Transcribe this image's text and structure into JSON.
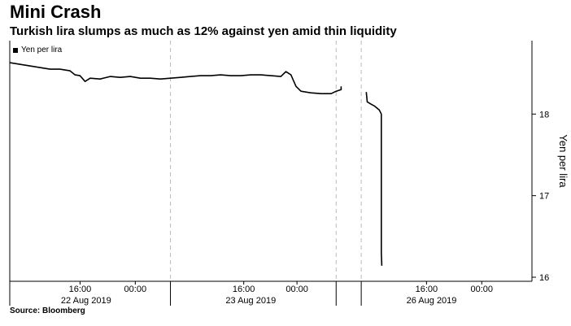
{
  "title": "Mini Crash",
  "subtitle": "Turkish lira slumps as much as 12% against yen amid thin liquidity",
  "source": "Source: Bloomberg",
  "chart_data": {
    "type": "line",
    "series": [
      {
        "name": "Yen per lira",
        "color": "#000000",
        "segments": [
          [
            [
              0,
              18.63
            ],
            [
              1,
              18.61
            ],
            [
              2,
              18.59
            ],
            [
              3,
              18.57
            ],
            [
              4,
              18.55
            ],
            [
              5,
              18.55
            ],
            [
              6,
              18.53
            ],
            [
              6.5,
              18.48
            ],
            [
              7,
              18.47
            ],
            [
              7.5,
              18.4
            ],
            [
              8,
              18.44
            ],
            [
              9,
              18.43
            ],
            [
              10,
              18.46
            ],
            [
              11,
              18.45
            ],
            [
              12,
              18.46
            ],
            [
              13,
              18.44
            ],
            [
              14,
              18.44
            ],
            [
              15,
              18.43
            ],
            [
              16,
              18.44
            ],
            [
              17,
              18.45
            ],
            [
              18,
              18.46
            ],
            [
              19,
              18.47
            ],
            [
              20,
              18.47
            ],
            [
              21,
              18.48
            ],
            [
              22,
              18.47
            ],
            [
              23,
              18.47
            ],
            [
              24,
              18.48
            ],
            [
              25,
              18.48
            ],
            [
              26,
              18.47
            ],
            [
              27,
              18.46
            ],
            [
              27.5,
              18.52
            ],
            [
              28,
              18.48
            ],
            [
              28.5,
              18.34
            ],
            [
              29,
              18.28
            ],
            [
              30,
              18.26
            ],
            [
              31,
              18.25
            ],
            [
              32,
              18.25
            ],
            [
              32.5,
              18.28
            ],
            [
              33,
              18.3
            ],
            [
              33,
              18.34
            ]
          ],
          [
            [
              35.5,
              18.27
            ],
            [
              35.6,
              18.15
            ],
            [
              36,
              18.12
            ],
            [
              36.3,
              18.1
            ],
            [
              36.8,
              18.05
            ],
            [
              37.0,
              18.0
            ],
            [
              37.0,
              16.3
            ],
            [
              37.05,
              16.14
            ]
          ]
        ]
      }
    ],
    "x_range": [
      0,
      52
    ],
    "ylim": [
      15.95,
      18.9
    ],
    "yticks": [
      16,
      17,
      18
    ],
    "ylabel": "Yen per lira",
    "time_ticks": [
      {
        "x": 7.0,
        "label": "16:00"
      },
      {
        "x": 12.5,
        "label": "00:00"
      },
      {
        "x": 23.3,
        "label": "16:00"
      },
      {
        "x": 28.6,
        "label": "00:00"
      },
      {
        "x": 41.5,
        "label": "16:00"
      },
      {
        "x": 47.0,
        "label": "00:00"
      }
    ],
    "date_labels": [
      {
        "x": 7.6,
        "label": "22 Aug 2019"
      },
      {
        "x": 24.0,
        "label": "23 Aug 2019"
      },
      {
        "x": 42.0,
        "label": "26 Aug 2019"
      }
    ],
    "day_boundaries": [
      16,
      32.5,
      35
    ],
    "grid": "vertical dashed at day boundaries"
  }
}
